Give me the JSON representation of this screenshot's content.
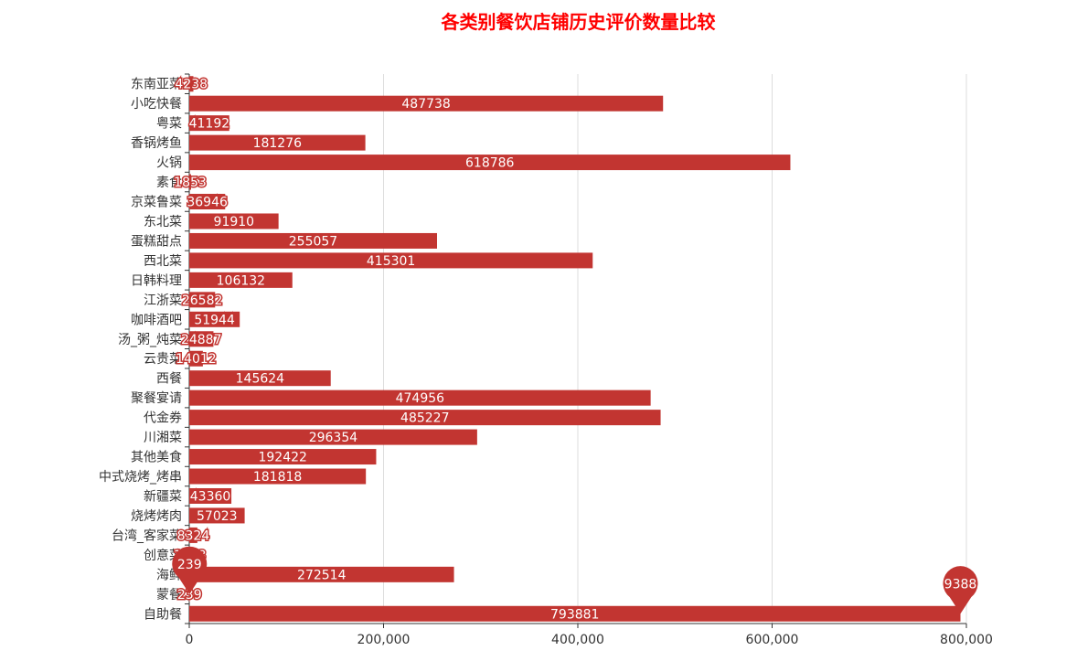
{
  "chart_data": {
    "type": "bar",
    "orientation": "horizontal",
    "title": "各类别餐饮店铺历史评价数量比较",
    "categories": [
      "东南亚菜",
      "小吃快餐",
      "粤菜",
      "香锅烤鱼",
      "火锅",
      "素食",
      "京菜鲁菜",
      "东北菜",
      "蛋糕甜点",
      "西北菜",
      "日韩料理",
      "江浙菜",
      "咖啡酒吧",
      "汤_粥_炖菜",
      "云贵菜",
      "西餐",
      "聚餐宴请",
      "代金券",
      "川湘菜",
      "其他美食",
      "中式烧烤_烤串",
      "新疆菜",
      "烧烤烤肉",
      "台湾_客家菜",
      "创意菜",
      "海鲜",
      "蒙餐",
      "自助餐"
    ],
    "values": [
      4238,
      487738,
      41192,
      181276,
      618786,
      1853,
      36946,
      91910,
      255057,
      415301,
      106132,
      26582,
      51944,
      24887,
      14012,
      145624,
      474956,
      485227,
      296354,
      192422,
      181818,
      43360,
      57023,
      8324,
      1273,
      272514,
      239,
      793881
    ],
    "xlim": [
      0,
      800000
    ],
    "x_ticks": [
      "0",
      "200,000",
      "400,000",
      "600,000",
      "800,000"
    ],
    "x_tick_values": [
      0,
      200000,
      400000,
      600000,
      800000
    ],
    "grid": true,
    "bar_color": "#c23531",
    "markers": [
      {
        "type": "min",
        "category": "蒙餐",
        "value": 239,
        "label": "239"
      },
      {
        "type": "max",
        "category": "自助餐",
        "value": 793881,
        "label": "793881"
      }
    ]
  }
}
